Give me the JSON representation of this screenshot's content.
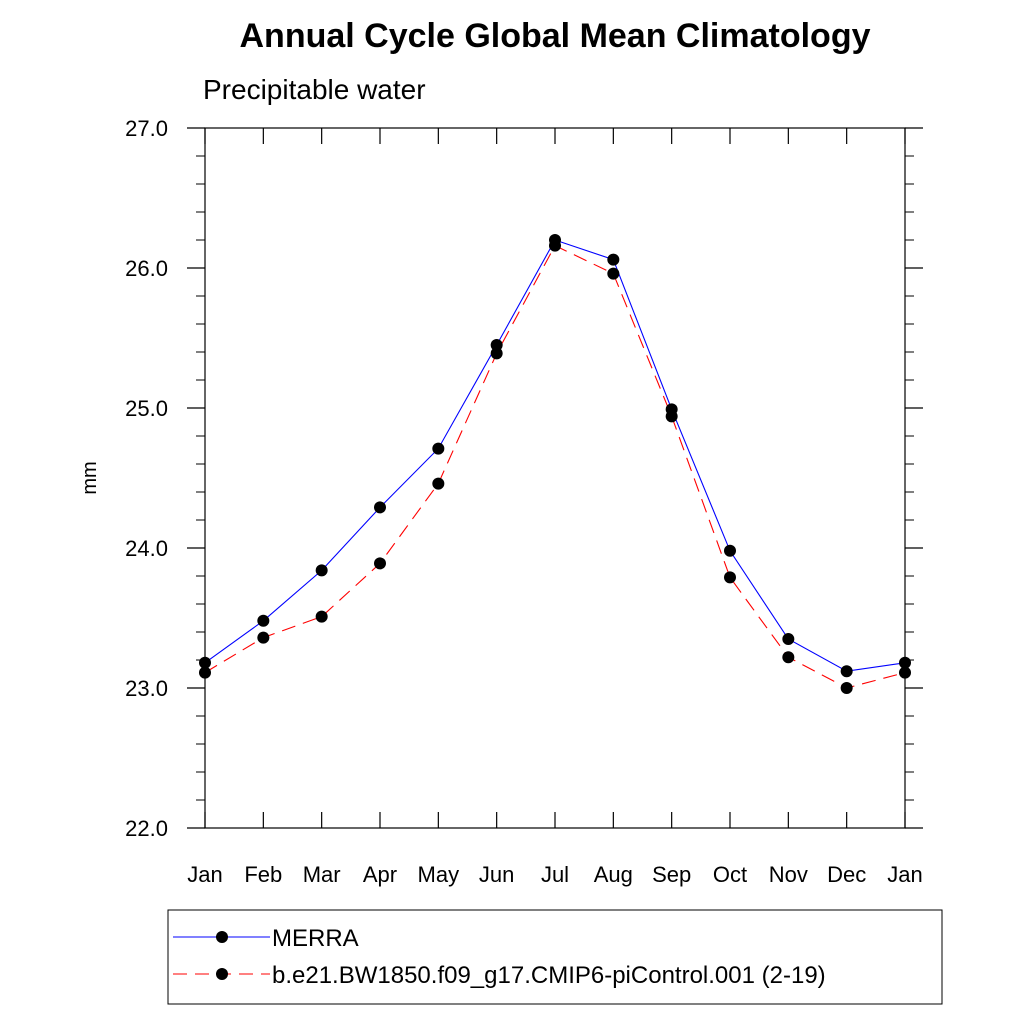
{
  "chart_data": {
    "type": "line",
    "title": "Annual Cycle Global Mean Climatology",
    "subtitle": "Precipitable water",
    "xlabel": "",
    "ylabel": "mm",
    "categories": [
      "Jan",
      "Feb",
      "Mar",
      "Apr",
      "May",
      "Jun",
      "Jul",
      "Aug",
      "Sep",
      "Oct",
      "Nov",
      "Dec",
      "Jan"
    ],
    "ylim": [
      22.0,
      27.0
    ],
    "yticks": [
      "22.0",
      "23.0",
      "24.0",
      "25.0",
      "26.0",
      "27.0"
    ],
    "grid": false,
    "legend_position": "bottom",
    "series": [
      {
        "name": "MERRA",
        "color": "#0000ff",
        "dash": "solid",
        "marker": "circle",
        "values": [
          23.18,
          23.48,
          23.84,
          24.29,
          24.71,
          25.45,
          26.2,
          26.06,
          24.99,
          23.98,
          23.35,
          23.12,
          23.18
        ]
      },
      {
        "name": "b.e21.BW1850.f09_g17.CMIP6-piControl.001 (2-19)",
        "color": "#ff0000",
        "dash": "dashed",
        "marker": "circle",
        "values": [
          23.11,
          23.36,
          23.51,
          23.89,
          24.46,
          25.39,
          26.16,
          25.96,
          24.94,
          23.79,
          23.22,
          23.0,
          23.11
        ]
      }
    ]
  }
}
